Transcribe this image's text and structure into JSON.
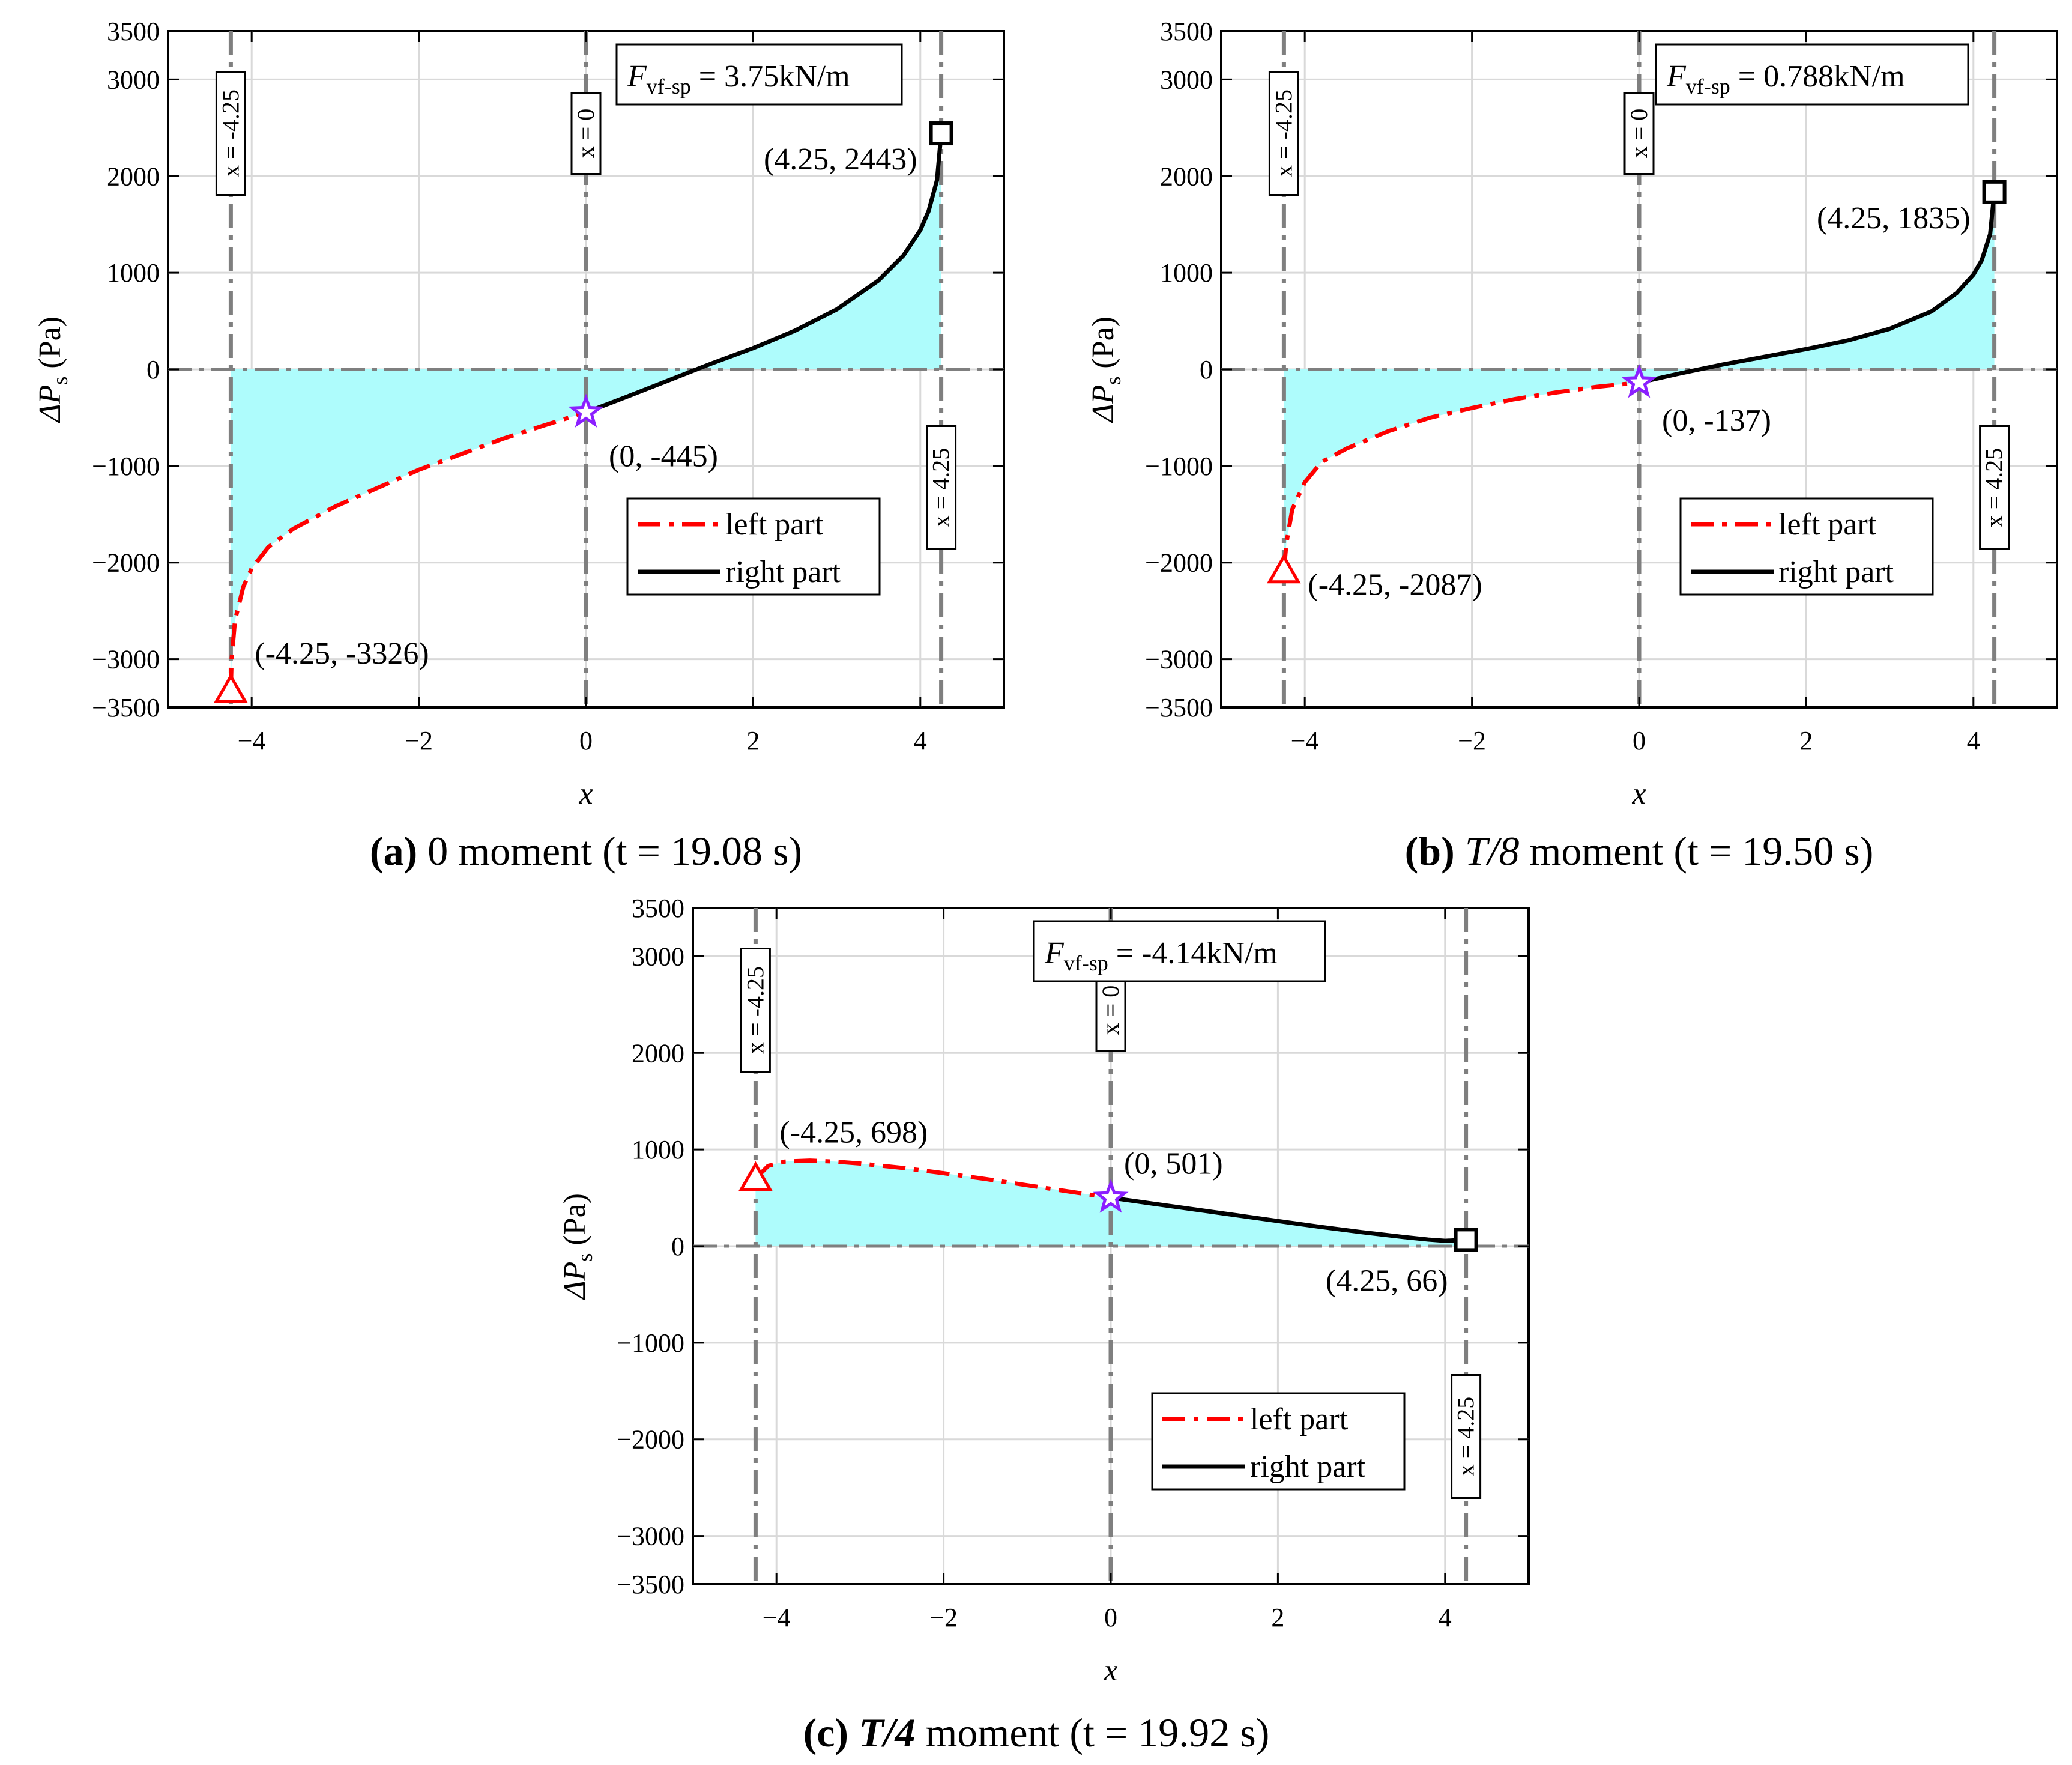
{
  "colors": {
    "fill": "#aefcfc",
    "left_line": "#ff0000",
    "right_line": "#000000",
    "grid": "#d9d9d9",
    "vline": "#7f7f7f",
    "star": "#8b1fff"
  },
  "legend": {
    "left": "left part",
    "right": "right part"
  },
  "chart_data": [
    {
      "type": "line",
      "panel": "a",
      "caption": {
        "letter": "(a)",
        "moment": "0",
        "rest": "moment (t = 19.08 s)"
      },
      "xlabel": "x",
      "ylabel": "ΔP",
      "ylabel_sub": "s",
      "ylabel_unit": "(Pa)",
      "xlim": [
        -5,
        5
      ],
      "ylim": [
        -3500,
        3500
      ],
      "xticks": [
        -4,
        -2,
        0,
        2,
        4
      ],
      "xtick_labels": [
        "−4",
        "−2",
        "0",
        "2",
        "4"
      ],
      "yticks": [
        -3500,
        -3000,
        -2000,
        -1000,
        0,
        1000,
        2000,
        3000,
        3500
      ],
      "ytick_labels": [
        "−3500",
        "−3000",
        "−2000",
        "−1000",
        "0",
        "1000",
        "2000",
        "3000",
        "3500"
      ],
      "force": {
        "symbol": "F",
        "sub": "vf-sp",
        "value": "= 3.75kN/m"
      },
      "vlines": [
        {
          "x": -4.25,
          "label": "x = -4.25"
        },
        {
          "x": 0,
          "label": "x = 0"
        },
        {
          "x": 4.25,
          "label": "x = 4.25"
        }
      ],
      "left_series": {
        "name": "left part",
        "x": [
          -4.25,
          -4.24,
          -4.2,
          -4.1,
          -4.0,
          -3.8,
          -3.5,
          -3.0,
          -2.5,
          -2.0,
          -1.5,
          -1.0,
          -0.5,
          0
        ],
        "y": [
          -3326,
          -3000,
          -2600,
          -2250,
          -2060,
          -1840,
          -1650,
          -1420,
          -1230,
          -1040,
          -880,
          -720,
          -580,
          -445
        ]
      },
      "right_series": {
        "name": "right part",
        "x": [
          0,
          0.5,
          1.0,
          1.5,
          2.0,
          2.5,
          3.0,
          3.5,
          3.8,
          4.0,
          4.1,
          4.2,
          4.25
        ],
        "y": [
          -445,
          -280,
          -110,
          60,
          220,
          400,
          620,
          920,
          1180,
          1440,
          1640,
          1960,
          2443
        ]
      },
      "markers": [
        {
          "shape": "triangle",
          "x": -4.25,
          "y": -3326,
          "label": "(-4.25, -3326)"
        },
        {
          "shape": "star",
          "x": 0,
          "y": -445,
          "label": "(0, -445)"
        },
        {
          "shape": "square",
          "x": 4.25,
          "y": 2443,
          "label": "(4.25, 2443)"
        }
      ]
    },
    {
      "type": "line",
      "panel": "b",
      "caption": {
        "letter": "(b)",
        "moment": "T/8",
        "rest": "moment (t = 19.50 s)"
      },
      "xlabel": "x",
      "ylabel": "ΔP",
      "ylabel_sub": "s",
      "ylabel_unit": "(Pa)",
      "xlim": [
        -5,
        5
      ],
      "ylim": [
        -3500,
        3500
      ],
      "xticks": [
        -4,
        -2,
        0,
        2,
        4
      ],
      "xtick_labels": [
        "−4",
        "−2",
        "0",
        "2",
        "4"
      ],
      "yticks": [
        -3500,
        -3000,
        -2000,
        -1000,
        0,
        1000,
        2000,
        3000,
        3500
      ],
      "ytick_labels": [
        "−3500",
        "−3000",
        "−2000",
        "−1000",
        "0",
        "1000",
        "2000",
        "3000",
        "3500"
      ],
      "force": {
        "symbol": "F",
        "sub": "vf-sp",
        "value": "= 0.788kN/m"
      },
      "vlines": [
        {
          "x": -4.25,
          "label": "x = -4.25"
        },
        {
          "x": 0,
          "label": "x = 0"
        },
        {
          "x": 4.25,
          "label": "x = 4.25"
        }
      ],
      "left_series": {
        "name": "left part",
        "x": [
          -4.25,
          -4.22,
          -4.15,
          -4.0,
          -3.8,
          -3.5,
          -3.0,
          -2.5,
          -2.0,
          -1.5,
          -1.0,
          -0.5,
          0
        ],
        "y": [
          -2087,
          -1800,
          -1450,
          -1170,
          -960,
          -820,
          -640,
          -500,
          -400,
          -310,
          -240,
          -180,
          -137
        ]
      },
      "right_series": {
        "name": "right part",
        "x": [
          0,
          0.5,
          1.0,
          1.5,
          2.0,
          2.5,
          3.0,
          3.5,
          3.8,
          4.0,
          4.1,
          4.2,
          4.25
        ],
        "y": [
          -137,
          -40,
          50,
          130,
          210,
          300,
          420,
          600,
          790,
          980,
          1130,
          1400,
          1835
        ]
      },
      "markers": [
        {
          "shape": "triangle",
          "x": -4.25,
          "y": -2087,
          "label": "(-4.25, -2087)"
        },
        {
          "shape": "star",
          "x": 0,
          "y": -137,
          "label": "(0, -137)"
        },
        {
          "shape": "square",
          "x": 4.25,
          "y": 1835,
          "label": "(4.25, 1835)"
        }
      ]
    },
    {
      "type": "line",
      "panel": "c",
      "caption": {
        "letter": "(c)",
        "moment": "T/4",
        "rest": "moment (t = 19.92 s)"
      },
      "xlabel": "x",
      "ylabel": "ΔP",
      "ylabel_sub": "s",
      "ylabel_unit": "(Pa)",
      "xlim": [
        -5,
        5
      ],
      "ylim": [
        -3500,
        3500
      ],
      "xticks": [
        -4,
        -2,
        0,
        2,
        4
      ],
      "xtick_labels": [
        "−4",
        "−2",
        "0",
        "2",
        "4"
      ],
      "yticks": [
        -3500,
        -3000,
        -2000,
        -1000,
        0,
        1000,
        2000,
        3000,
        3500
      ],
      "ytick_labels": [
        "−3500",
        "−3000",
        "−2000",
        "−1000",
        "0",
        "1000",
        "2000",
        "3000",
        "3500"
      ],
      "force": {
        "symbol": "F",
        "sub": "vf-sp",
        "value": "= -4.14kN/m"
      },
      "vlines": [
        {
          "x": -4.25,
          "label": "x = -4.25"
        },
        {
          "x": 0,
          "label": "x = 0"
        },
        {
          "x": 4.25,
          "label": "x = 4.25"
        }
      ],
      "left_series": {
        "name": "left part",
        "x": [
          -4.25,
          -4.1,
          -3.9,
          -3.6,
          -3.3,
          -3.0,
          -2.5,
          -2.0,
          -1.5,
          -1.0,
          -0.5,
          0
        ],
        "y": [
          698,
          830,
          875,
          885,
          875,
          855,
          810,
          755,
          695,
          630,
          565,
          501
        ]
      },
      "right_series": {
        "name": "right part",
        "x": [
          0,
          0.5,
          1.0,
          1.5,
          2.0,
          2.5,
          3.0,
          3.5,
          3.8,
          4.0,
          4.25
        ],
        "y": [
          501,
          440,
          380,
          320,
          260,
          200,
          145,
          95,
          68,
          55,
          66
        ]
      },
      "markers": [
        {
          "shape": "triangle",
          "x": -4.25,
          "y": 698,
          "label": "(-4.25, 698)"
        },
        {
          "shape": "star",
          "x": 0,
          "y": 501,
          "label": "(0, 501)"
        },
        {
          "shape": "square",
          "x": 4.25,
          "y": 66,
          "label": "(4.25, 66)"
        }
      ]
    }
  ]
}
